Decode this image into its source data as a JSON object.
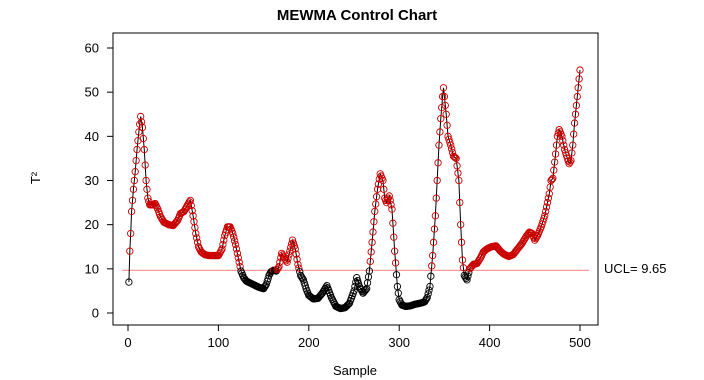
{
  "chart_data": {
    "type": "line",
    "title": "MEWMA Control Chart",
    "xlabel": "Sample",
    "ylabel": "T²",
    "xlim": [
      0,
      500
    ],
    "ylim": [
      0,
      60
    ],
    "x_ticks": [
      "0",
      "100",
      "200",
      "300",
      "400",
      "500"
    ],
    "y_ticks": [
      "0",
      "10",
      "20",
      "30",
      "40",
      "50",
      "60"
    ],
    "grid": false,
    "legend": "none",
    "ucl": {
      "value": 9.65,
      "label": "UCL= 9.65"
    },
    "colors": {
      "line": "#000000",
      "in_control": "#000000",
      "out_of_control": "#cc0000",
      "ucl": "#ff9999"
    },
    "series": [
      {
        "anchors": [
          [
            1,
            7
          ],
          [
            2,
            14
          ],
          [
            3,
            18
          ],
          [
            4,
            23
          ],
          [
            6,
            28
          ],
          [
            8,
            32
          ],
          [
            10,
            37
          ],
          [
            12,
            41
          ],
          [
            14,
            44.5
          ],
          [
            16,
            42
          ],
          [
            18,
            37
          ],
          [
            20,
            30
          ],
          [
            22,
            26
          ],
          [
            24,
            24.5
          ],
          [
            26,
            24.5
          ],
          [
            28,
            24.5
          ],
          [
            30,
            24.8
          ],
          [
            33,
            23.5
          ],
          [
            36,
            21.8
          ],
          [
            40,
            20.5
          ],
          [
            45,
            20
          ],
          [
            50,
            19.8
          ],
          [
            55,
            21
          ],
          [
            58,
            22.5
          ],
          [
            62,
            23
          ],
          [
            66,
            24.5
          ],
          [
            69,
            25.5
          ],
          [
            72,
            22
          ],
          [
            75,
            18
          ],
          [
            78,
            15
          ],
          [
            81,
            13.8
          ],
          [
            85,
            13.2
          ],
          [
            90,
            13
          ],
          [
            95,
            13
          ],
          [
            100,
            13
          ],
          [
            104,
            14.5
          ],
          [
            107,
            17.5
          ],
          [
            110,
            19.5
          ],
          [
            113,
            19.5
          ],
          [
            116,
            18
          ],
          [
            119,
            15.5
          ],
          [
            122,
            12.5
          ],
          [
            125,
            9.5
          ],
          [
            128,
            8
          ],
          [
            131,
            7.2
          ],
          [
            135,
            6.8
          ],
          [
            140,
            6.3
          ],
          [
            145,
            5.8
          ],
          [
            150,
            5.5
          ],
          [
            153,
            6.5
          ],
          [
            156,
            8.5
          ],
          [
            158,
            9.3
          ],
          [
            161,
            9.7
          ],
          [
            164,
            9.5
          ],
          [
            167,
            10.5
          ],
          [
            170,
            13.5
          ],
          [
            173,
            12.5
          ],
          [
            176,
            11.5
          ],
          [
            179,
            14
          ],
          [
            182,
            16.5
          ],
          [
            185,
            14.5
          ],
          [
            188,
            11
          ],
          [
            191,
            8.5
          ],
          [
            194,
            7.5
          ],
          [
            197,
            5.5
          ],
          [
            200,
            4
          ],
          [
            205,
            3.2
          ],
          [
            210,
            3.3
          ],
          [
            215,
            4.5
          ],
          [
            220,
            6.2
          ],
          [
            225,
            3.5
          ],
          [
            230,
            1.5
          ],
          [
            235,
            1
          ],
          [
            240,
            1.2
          ],
          [
            245,
            2.2
          ],
          [
            250,
            5
          ],
          [
            253,
            8
          ],
          [
            256,
            6
          ],
          [
            260,
            4.5
          ],
          [
            264,
            5.5
          ],
          [
            267,
            9.5
          ],
          [
            270,
            16
          ],
          [
            273,
            23
          ],
          [
            276,
            28
          ],
          [
            279,
            31.5
          ],
          [
            282,
            30
          ],
          [
            284,
            26
          ],
          [
            286,
            25
          ],
          [
            289,
            26.5
          ],
          [
            292,
            23.5
          ],
          [
            295,
            14
          ],
          [
            298,
            6
          ],
          [
            300,
            3
          ],
          [
            303,
            1.8
          ],
          [
            307,
            1.5
          ],
          [
            312,
            1.6
          ],
          [
            318,
            2
          ],
          [
            323,
            2.2
          ],
          [
            328,
            2.5
          ],
          [
            331,
            3.5
          ],
          [
            334,
            6
          ],
          [
            337,
            13
          ],
          [
            340,
            22
          ],
          [
            342,
            30
          ],
          [
            344,
            38
          ],
          [
            346,
            44
          ],
          [
            348,
            49
          ],
          [
            349,
            51
          ],
          [
            352,
            45
          ],
          [
            354,
            40
          ],
          [
            357,
            38
          ],
          [
            360,
            35.5
          ],
          [
            363,
            35
          ],
          [
            366,
            30
          ],
          [
            368,
            20
          ],
          [
            370,
            12
          ],
          [
            372,
            8.5
          ],
          [
            375,
            7.5
          ],
          [
            378,
            10
          ],
          [
            382,
            11
          ],
          [
            386,
            11.2
          ],
          [
            390,
            12.5
          ],
          [
            393,
            13.8
          ],
          [
            397,
            14.5
          ],
          [
            402,
            15
          ],
          [
            407,
            15.2
          ],
          [
            412,
            14
          ],
          [
            416,
            13.3
          ],
          [
            421,
            12.8
          ],
          [
            426,
            13.2
          ],
          [
            431,
            14.5
          ],
          [
            436,
            15.8
          ],
          [
            441,
            17.5
          ],
          [
            444,
            18.3
          ],
          [
            447,
            18
          ],
          [
            450,
            16.5
          ],
          [
            453,
            17.5
          ],
          [
            457,
            19.5
          ],
          [
            461,
            22
          ],
          [
            464,
            25
          ],
          [
            466,
            27
          ],
          [
            468,
            30
          ],
          [
            470,
            30.5
          ],
          [
            473,
            36
          ],
          [
            475,
            40
          ],
          [
            477,
            41.5
          ],
          [
            480,
            40
          ],
          [
            483,
            37
          ],
          [
            486,
            35
          ],
          [
            488,
            33.8
          ],
          [
            490,
            34.5
          ],
          [
            492,
            38
          ],
          [
            494,
            43
          ],
          [
            496,
            47
          ],
          [
            498,
            51
          ],
          [
            500,
            55
          ]
        ]
      }
    ]
  }
}
